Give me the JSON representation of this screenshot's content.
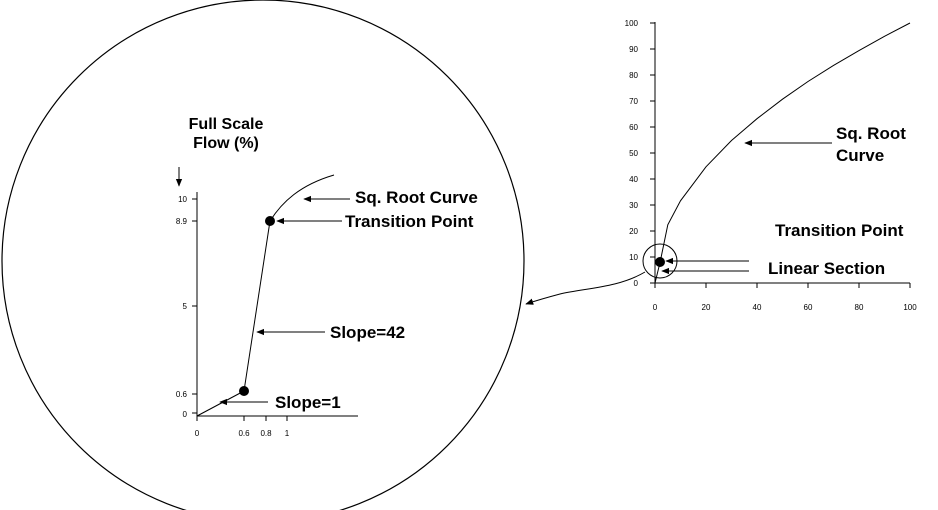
{
  "zoom": {
    "y_title_line1": "Full Scale",
    "y_title_line2": "Flow (%)",
    "labels": {
      "sq_root_curve": "Sq. Root Curve",
      "transition_point": "Transition Point",
      "slope_42": "Slope=42",
      "slope_1": "Slope=1"
    },
    "y_ticks": [
      "10",
      "8.9",
      "5",
      "0.6",
      "0"
    ],
    "x_ticks": [
      "0",
      "0.6",
      "0.8",
      "1"
    ]
  },
  "main": {
    "labels": {
      "sq_root_line1": "Sq. Root",
      "sq_root_line2": "Curve",
      "transition_point": "Transition Point",
      "linear_section": "Linear Section"
    },
    "y_ticks": [
      "100",
      "90",
      "80",
      "70",
      "60",
      "50",
      "40",
      "30",
      "20",
      "10",
      "0"
    ],
    "x_ticks": [
      "0",
      "20",
      "40",
      "60",
      "80",
      "100"
    ]
  },
  "chart_data": [
    {
      "type": "line",
      "series": [
        {
          "x": [
            0,
            0.6
          ],
          "y": [
            0,
            0.6
          ]
        },
        {
          "x": [
            0.6,
            0.8
          ],
          "y": [
            0.6,
            8.9
          ]
        },
        {
          "x": [
            0.8,
            1,
            1.5
          ],
          "y": [
            8.9,
            10,
            12.2
          ]
        }
      ],
      "points": [
        {
          "x": 0.6,
          "y": 0.6
        },
        {
          "x": 0.8,
          "y": 8.9
        }
      ],
      "xlim": [
        0,
        1.5
      ],
      "ylim": [
        0,
        12
      ]
    },
    {
      "type": "line",
      "series": [
        {
          "x": [
            0,
            2,
            5,
            10,
            20,
            30,
            40,
            50,
            60,
            70,
            80,
            90,
            100
          ],
          "y": [
            0,
            8,
            22.4,
            31.6,
            44.7,
            54.8,
            63.2,
            70.7,
            77.5,
            83.7,
            89.4,
            94.9,
            100
          ]
        }
      ],
      "points": [
        {
          "x": 2,
          "y": 8
        }
      ],
      "xlim": [
        0,
        100
      ],
      "ylim": [
        0,
        100
      ]
    }
  ]
}
